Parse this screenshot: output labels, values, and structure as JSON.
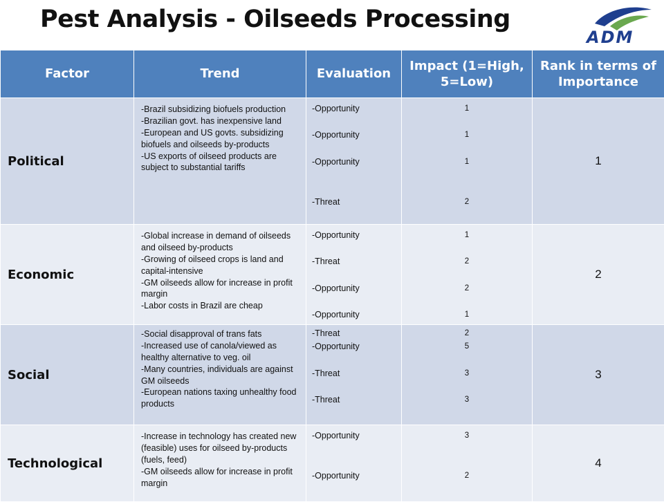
{
  "title": "Pest Analysis - Oilseeds Processing",
  "logo": {
    "text": "ADM",
    "color": "#1f3f8f",
    "accent": "#6aa84f"
  },
  "headers": [
    "Factor",
    "Trend",
    "Evaluation",
    "Impact (1=High, 5=Low)",
    "Rank in terms of Importance"
  ],
  "rows": [
    {
      "factor": "Political",
      "trends": [
        "-Brazil subsidizing biofuels production",
        "-Brazilian govt. has inexpensive land",
        "-European and US govts. subsidizing biofuels and oilseeds by-products",
        "-US exports of oilseed products are subject to substantial tariffs"
      ],
      "evaluations": [
        "-Opportunity",
        "-Opportunity",
        "-Opportunity",
        "-Threat"
      ],
      "impacts": [
        "1",
        "1",
        "1",
        "2"
      ],
      "rank": "1"
    },
    {
      "factor": "Economic",
      "trends": [
        "-Global increase in demand of oilseeds and oilseed by-products",
        "-Growing of oilseed crops is land and capital-intensive",
        "-GM oilseeds allow for increase in profit margin",
        "-Labor costs in Brazil are cheap"
      ],
      "evaluations": [
        "-Opportunity",
        "-Threat",
        "-Opportunity",
        "-Opportunity"
      ],
      "impacts": [
        "1",
        "2",
        "2",
        "1"
      ],
      "rank": "2"
    },
    {
      "factor": "Social",
      "trends": [
        "-Social disapproval of trans fats",
        "-Increased use of canola/viewed as healthy alternative to veg. oil",
        "-Many countries, individuals are against GM oilseeds",
        "-European nations taxing unhealthy food products"
      ],
      "evaluations": [
        "-Threat",
        "-Opportunity",
        "-Threat",
        "-Threat"
      ],
      "impacts": [
        "2",
        "5",
        "3",
        "3"
      ],
      "rank": "3"
    },
    {
      "factor": "Technological",
      "trends": [
        "-Increase in technology has created new (feasible) uses for oilseed by-products (fuels, feed)",
        "-GM oilseeds allow for increase in profit margin"
      ],
      "evaluations": [
        "-Opportunity",
        "-Opportunity"
      ],
      "impacts": [
        "3",
        "2"
      ],
      "rank": "4"
    }
  ]
}
